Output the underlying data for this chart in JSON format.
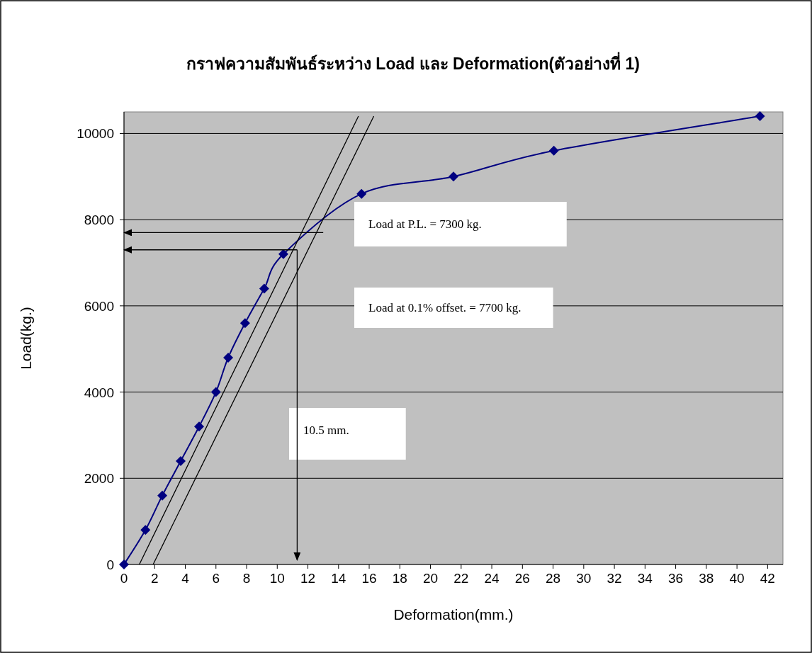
{
  "chart_data": {
    "type": "line",
    "title": "กราฟความสัมพันธ์ระหว่าง Load และ Deformation(ตัวอย่างที่ 1)",
    "xlabel": "Deformation(mm.)",
    "ylabel": "Load(kg.)",
    "xlim": [
      0,
      43
    ],
    "xticks": [
      0,
      2,
      4,
      6,
      8,
      10,
      12,
      14,
      16,
      18,
      20,
      22,
      24,
      26,
      28,
      30,
      32,
      34,
      36,
      38,
      40,
      42
    ],
    "ylim": [
      0,
      10500
    ],
    "yticks": [
      0,
      2000,
      4000,
      6000,
      8000,
      10000
    ],
    "grid": "y",
    "series": [
      {
        "color": "#000080",
        "marker": "diamond",
        "x": [
          0,
          1.4,
          2.5,
          3.7,
          4.9,
          6.0,
          6.8,
          7.9,
          9.15,
          10.4,
          15.5,
          21.5,
          28.05,
          41.5
        ],
        "values": [
          0,
          800,
          1600,
          2400,
          3200,
          4000,
          4800,
          5600,
          6400,
          7200,
          8600,
          9000,
          9600,
          10400
        ]
      },
      {
        "color": "#000000",
        "marker": "none",
        "x": [
          1.0,
          15.3
        ],
        "values": [
          0,
          10400
        ]
      },
      {
        "color": "#000000",
        "marker": "none",
        "x": [
          1.9,
          16.3
        ],
        "values": [
          0,
          10400
        ]
      },
      {
        "color": "#000000",
        "x": [
          13,
          0
        ],
        "values": [
          7700,
          7700
        ]
      },
      {
        "color": "#000000",
        "x": [
          11.3,
          0
        ],
        "values": [
          7300,
          7300
        ]
      },
      {
        "color": "#000000",
        "x": [
          11.3,
          11.3
        ],
        "values": [
          7300,
          100
        ]
      }
    ],
    "annotations": [
      "Load at P.L. = 7300 kg.",
      "Load at 0.1% offset. = 7700 kg.",
      "10.5 mm."
    ]
  }
}
